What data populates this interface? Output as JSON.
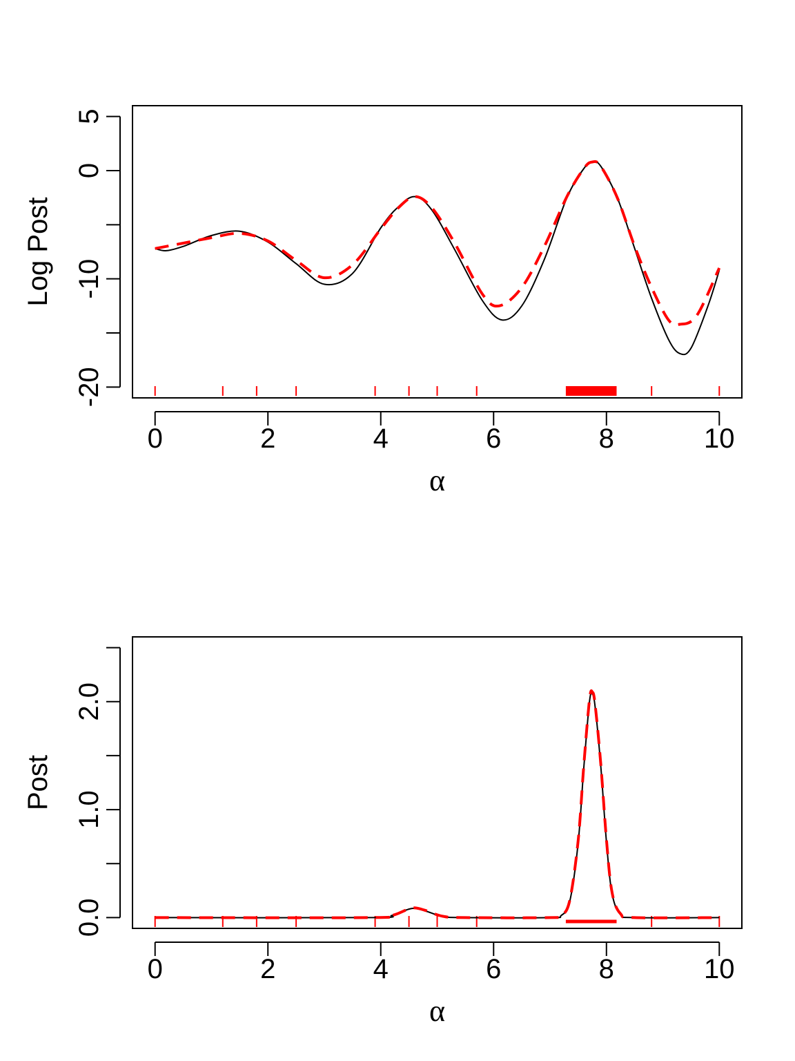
{
  "chart_data": [
    {
      "type": "line",
      "ylabel": "Log Post",
      "xlabel": "α",
      "xlim": [
        -0.4,
        10.4
      ],
      "ylim": [
        -21,
        6
      ],
      "x_ticks": [
        0,
        2,
        4,
        6,
        8,
        10
      ],
      "y_ticks": [
        -20,
        -15,
        -10,
        -5,
        0,
        5
      ],
      "y_tick_labels": [
        "-20",
        "",
        "-10",
        "",
        "0",
        "5"
      ],
      "series": [
        {
          "color": "#000000",
          "dash": "solid",
          "points": [
            [
              0,
              -7.2
            ],
            [
              0.2,
              -7.4
            ],
            [
              0.5,
              -7.0
            ],
            [
              1.0,
              -6.0
            ],
            [
              1.5,
              -5.6
            ],
            [
              2.0,
              -6.6
            ],
            [
              2.5,
              -8.6
            ],
            [
              3.0,
              -10.5
            ],
            [
              3.5,
              -9.5
            ],
            [
              4.0,
              -5.3
            ],
            [
              4.3,
              -3.4
            ],
            [
              4.6,
              -2.4
            ],
            [
              4.9,
              -3.6
            ],
            [
              5.3,
              -7.2
            ],
            [
              5.8,
              -12.0
            ],
            [
              6.15,
              -13.8
            ],
            [
              6.5,
              -12.5
            ],
            [
              6.9,
              -8.2
            ],
            [
              7.3,
              -2.5
            ],
            [
              7.6,
              0.2
            ],
            [
              7.75,
              0.8
            ],
            [
              7.9,
              0.4
            ],
            [
              8.2,
              -2.6
            ],
            [
              8.5,
              -7.2
            ],
            [
              8.8,
              -11.8
            ],
            [
              9.1,
              -15.6
            ],
            [
              9.3,
              -16.9
            ],
            [
              9.5,
              -16.4
            ],
            [
              9.8,
              -12.5
            ],
            [
              10.0,
              -9.2
            ]
          ]
        },
        {
          "color": "#ff0000",
          "dash": "dashed",
          "points": [
            [
              0,
              -7.2
            ],
            [
              0.5,
              -6.7
            ],
            [
              1.0,
              -6.2
            ],
            [
              1.5,
              -5.8
            ],
            [
              2.0,
              -6.5
            ],
            [
              2.5,
              -8.3
            ],
            [
              3.0,
              -9.9
            ],
            [
              3.5,
              -8.7
            ],
            [
              4.0,
              -5.4
            ],
            [
              4.3,
              -3.5
            ],
            [
              4.6,
              -2.4
            ],
            [
              4.9,
              -3.4
            ],
            [
              5.3,
              -6.6
            ],
            [
              5.8,
              -11.4
            ],
            [
              6.1,
              -12.5
            ],
            [
              6.5,
              -10.8
            ],
            [
              6.9,
              -7.0
            ],
            [
              7.3,
              -2.4
            ],
            [
              7.6,
              0.2
            ],
            [
              7.75,
              0.8
            ],
            [
              7.9,
              0.4
            ],
            [
              8.2,
              -2.6
            ],
            [
              8.5,
              -7.0
            ],
            [
              8.8,
              -10.8
            ],
            [
              9.1,
              -13.8
            ],
            [
              9.3,
              -14.2
            ],
            [
              9.6,
              -13.4
            ],
            [
              10.0,
              -9.0
            ]
          ]
        }
      ],
      "rug_x": [
        0,
        1.2,
        1.8,
        2.5,
        3.9,
        4.5,
        5.0,
        5.7,
        8.8,
        10.0
      ],
      "interval": [
        7.28,
        8.18
      ],
      "grid": false,
      "legend": "none"
    },
    {
      "type": "line",
      "ylabel": "Post",
      "xlabel": "α",
      "xlim": [
        -0.4,
        10.4
      ],
      "ylim": [
        -0.1,
        2.6
      ],
      "x_ticks": [
        0,
        2,
        4,
        6,
        8,
        10
      ],
      "y_ticks": [
        0,
        0.5,
        1.0,
        1.5,
        2.0,
        2.5
      ],
      "y_tick_labels": [
        "0.0",
        "",
        "1.0",
        "",
        "2.0",
        ""
      ],
      "series": [
        {
          "color": "#000000",
          "dash": "solid",
          "points": [
            [
              0,
              0
            ],
            [
              3.8,
              0
            ],
            [
              4.2,
              0.02
            ],
            [
              4.45,
              0.07
            ],
            [
              4.6,
              0.085
            ],
            [
              4.8,
              0.06
            ],
            [
              5.1,
              0.01
            ],
            [
              5.5,
              0
            ],
            [
              7.0,
              0
            ],
            [
              7.2,
              0.02
            ],
            [
              7.35,
              0.15
            ],
            [
              7.5,
              0.7
            ],
            [
              7.6,
              1.4
            ],
            [
              7.7,
              2.0
            ],
            [
              7.75,
              2.07
            ],
            [
              7.8,
              1.95
            ],
            [
              7.9,
              1.4
            ],
            [
              8.0,
              0.7
            ],
            [
              8.1,
              0.22
            ],
            [
              8.25,
              0.03
            ],
            [
              8.5,
              0
            ],
            [
              10,
              0
            ]
          ]
        },
        {
          "color": "#ff0000",
          "dash": "dashed",
          "points": [
            [
              0,
              0
            ],
            [
              3.8,
              0
            ],
            [
              4.2,
              0.02
            ],
            [
              4.45,
              0.07
            ],
            [
              4.6,
              0.09
            ],
            [
              4.8,
              0.065
            ],
            [
              5.1,
              0.012
            ],
            [
              5.5,
              0
            ],
            [
              7.0,
              0
            ],
            [
              7.2,
              0.02
            ],
            [
              7.35,
              0.16
            ],
            [
              7.5,
              0.72
            ],
            [
              7.6,
              1.42
            ],
            [
              7.7,
              2.02
            ],
            [
              7.75,
              2.09
            ],
            [
              7.8,
              1.97
            ],
            [
              7.9,
              1.42
            ],
            [
              8.0,
              0.72
            ],
            [
              8.1,
              0.23
            ],
            [
              8.25,
              0.035
            ],
            [
              8.5,
              0
            ],
            [
              10,
              0
            ]
          ]
        }
      ],
      "rug_x": [
        0,
        1.2,
        1.8,
        2.5,
        3.9,
        4.5,
        5.0,
        5.7,
        8.8,
        10.0
      ],
      "interval": [
        7.28,
        8.18
      ],
      "grid": false,
      "legend": "none"
    }
  ]
}
